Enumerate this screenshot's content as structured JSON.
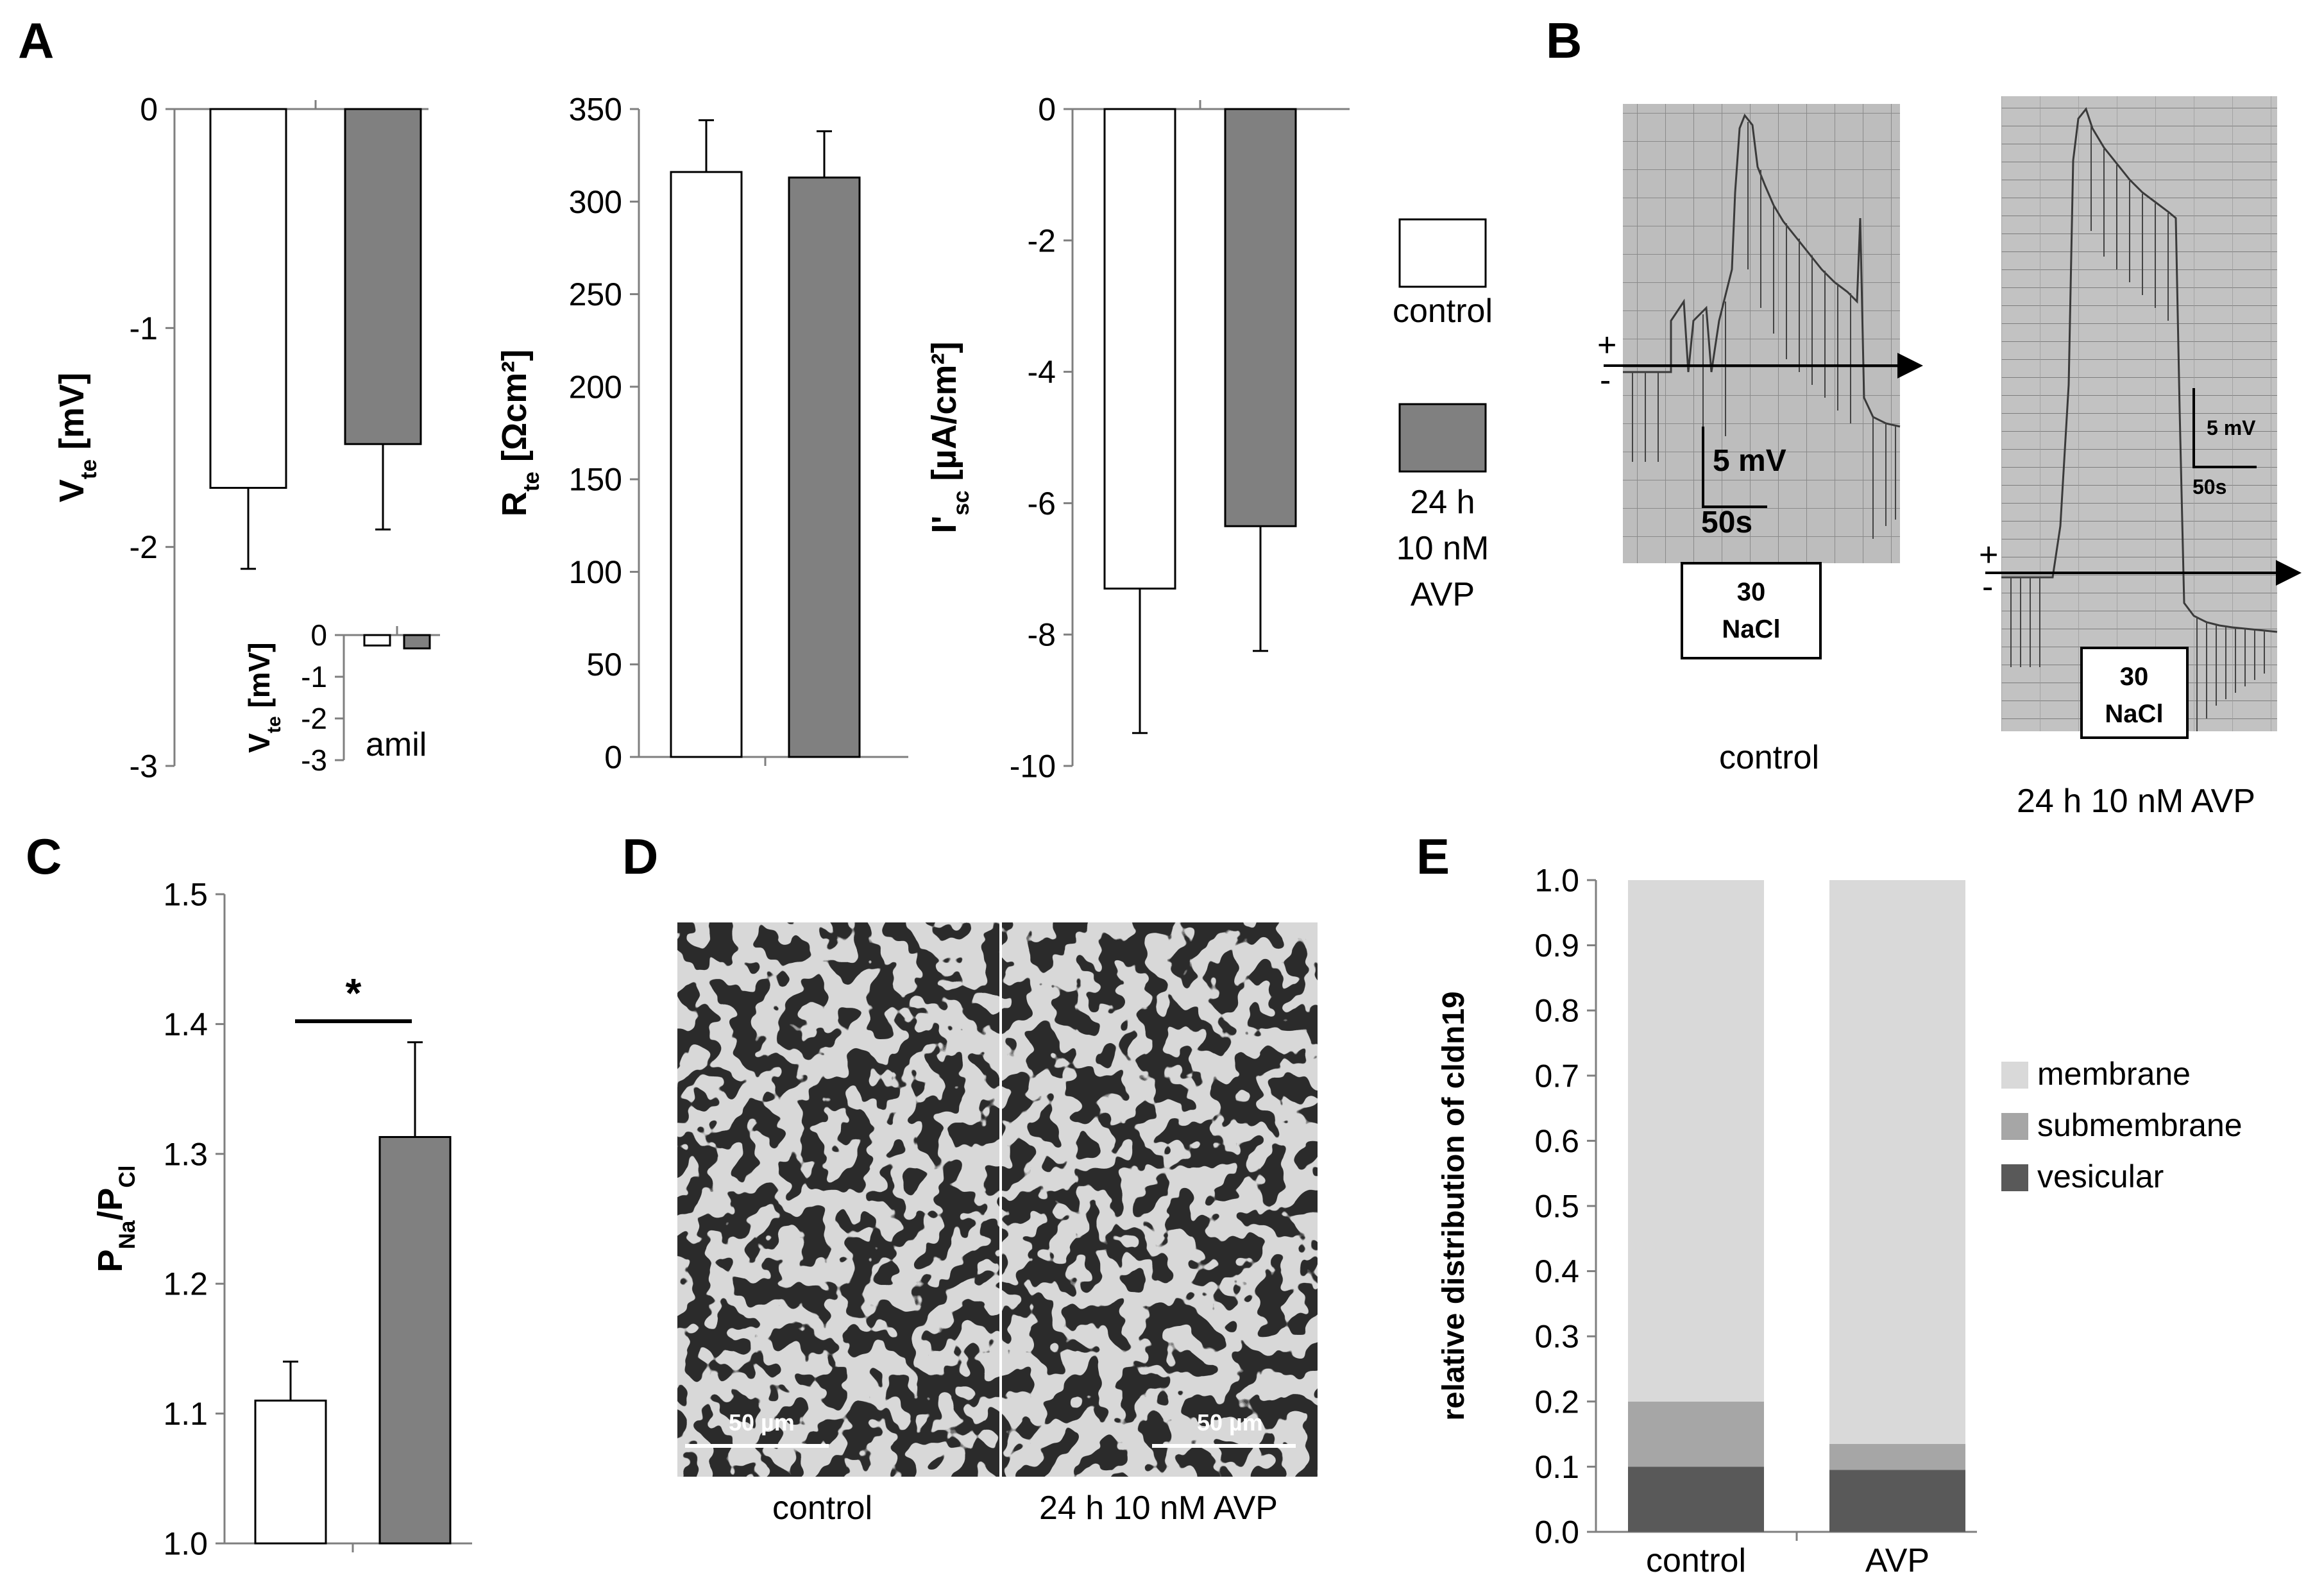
{
  "panels": {
    "a": "A",
    "b": "B",
    "c": "C",
    "d": "D",
    "e": "E"
  },
  "colors": {
    "control": "#ffffff",
    "avp": "#808080",
    "membrane": "#d9d9d9",
    "submembrane": "#a6a6a6",
    "vesicular": "#595959"
  },
  "chart_data": [
    {
      "panel": "A",
      "type": "bar",
      "categories": [
        "control",
        "24 h 10 nM AVP"
      ],
      "values": [
        -1.73,
        -1.53
      ],
      "errors": [
        0.37,
        0.39
      ],
      "ylim": [
        -3,
        0
      ],
      "yticks": [
        "0",
        "-1",
        "-2",
        "-3"
      ],
      "ylabel": {
        "main": "V",
        "sub": "te",
        "unit": " [mV]"
      }
    },
    {
      "panel": "A-inset",
      "type": "bar",
      "categories": [
        "control",
        "24 h 10 nM AVP"
      ],
      "values": [
        -0.25,
        -0.32
      ],
      "ylim": [
        -3,
        0
      ],
      "yticks": [
        "0",
        "-1",
        "-2",
        "-3"
      ],
      "ylabel": {
        "main": "V",
        "sub": "te",
        "unit": " [mV]"
      },
      "annotation": "amil"
    },
    {
      "panel": "A",
      "type": "bar",
      "categories": [
        "control",
        "24 h 10 nM AVP"
      ],
      "values": [
        316,
        313
      ],
      "errors": [
        28,
        25
      ],
      "ylim": [
        0,
        350
      ],
      "yticks": [
        "0",
        "50",
        "100",
        "150",
        "200",
        "250",
        "300",
        "350"
      ],
      "ylabel": {
        "main": "R",
        "sub": "te",
        "unit": " [Ωcm²]"
      }
    },
    {
      "panel": "A",
      "type": "bar",
      "categories": [
        "control",
        "24 h 10 nM AVP"
      ],
      "values": [
        -7.3,
        -6.35
      ],
      "errors": [
        2.2,
        1.9
      ],
      "ylim": [
        -10,
        0
      ],
      "yticks": [
        "0",
        "-2",
        "-4",
        "-6",
        "-8",
        "-10"
      ],
      "ylabel": {
        "main": "I'",
        "sub": "sc",
        "unit": " [µA/cm²]"
      }
    },
    {
      "panel": "C",
      "type": "bar",
      "categories": [
        "control",
        "24 h 10 nM AVP"
      ],
      "values": [
        1.11,
        1.313
      ],
      "errors": [
        0.03,
        0.073
      ],
      "ylim": [
        1.0,
        1.5
      ],
      "yticks": [
        "1.0",
        "1.1",
        "1.2",
        "1.3",
        "1.4",
        "1.5"
      ],
      "ylabel": {
        "main": "P",
        "sub": "Na",
        "main2": "/P",
        "sub2": "Cl"
      },
      "significance": "*"
    },
    {
      "panel": "E",
      "type": "bar",
      "stacked": true,
      "categories": [
        "control",
        "AVP"
      ],
      "series": [
        {
          "name": "vesicular",
          "values": [
            0.1,
            0.095
          ]
        },
        {
          "name": "submembrane",
          "values": [
            0.1,
            0.04
          ]
        },
        {
          "name": "membrane",
          "values": [
            0.8,
            0.865
          ]
        }
      ],
      "ylim": [
        0,
        1
      ],
      "yticks": [
        "0.0",
        "0.1",
        "0.2",
        "0.3",
        "0.4",
        "0.5",
        "0.6",
        "0.7",
        "0.8",
        "0.9",
        "1.0"
      ],
      "ylabel": "relative distribution of cldn19",
      "legend": "right"
    }
  ],
  "legend_a": {
    "control": "control",
    "avp_line1": "24 h",
    "avp_line2": "10 nM",
    "avp_line3": "AVP"
  },
  "panel_b": {
    "left": {
      "caption": "control",
      "scale_v": "5 mV",
      "scale_t": "50s",
      "stim_line1": "30",
      "stim_line2": "NaCl"
    },
    "right": {
      "caption": "24 h 10 nM AVP",
      "scale_v": "5 mV",
      "scale_t": "50s",
      "stim_line1": "30",
      "stim_line2": "NaCl"
    },
    "plus": "+",
    "minus": "-"
  },
  "panel_d": {
    "left_caption": "control",
    "right_caption": "24 h 10 nM AVP",
    "scalebar_left": "50 µm",
    "scalebar_right": "50 µm"
  }
}
